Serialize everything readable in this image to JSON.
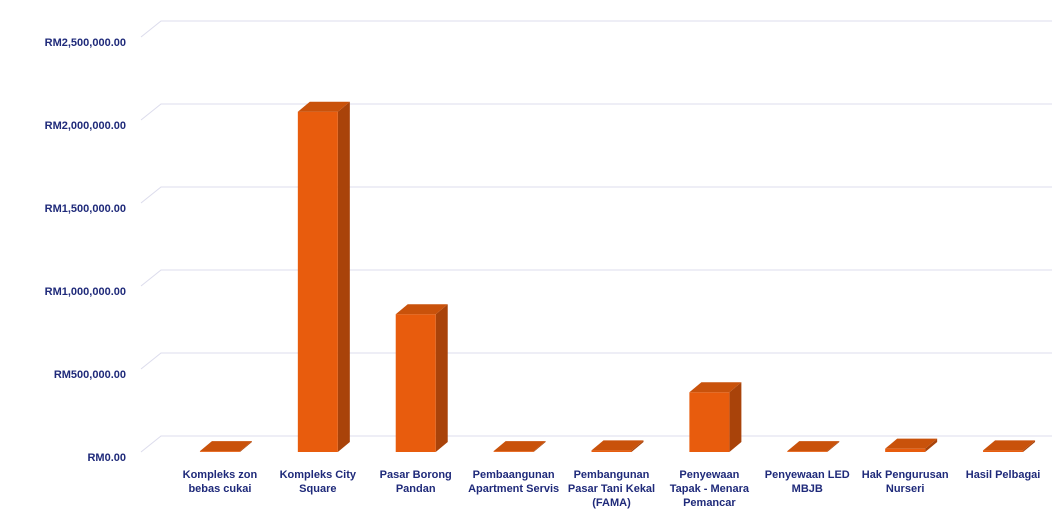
{
  "chart_data": {
    "type": "bar3d",
    "categories": [
      "Kompleks zon bebas cukai",
      "Kompleks City Square",
      "Pasar Borong Pandan",
      "Pembaangunan Apartment Servis",
      "Pembangunan Pasar Tani Kekal (FAMA)",
      "Penyewaan Tapak - Menara Pemancar",
      "Penyewaan LED MBJB",
      "Hak Pengurusan Nurseri",
      "Hasil Pelbagai"
    ],
    "values": [
      5000,
      2050000,
      830000,
      5000,
      10000,
      360000,
      5000,
      20000,
      10000
    ],
    "color": "#e85c0d",
    "ylim": [
      0,
      2500000
    ],
    "yticks": [
      {
        "value": 0,
        "label": "RM0.00"
      },
      {
        "value": 500000,
        "label": "RM500,000.00"
      },
      {
        "value": 1000000,
        "label": "RM1,000,000.00"
      },
      {
        "value": 1500000,
        "label": "RM1,500,000.00"
      },
      {
        "value": 2000000,
        "label": "RM2,000,000.00"
      },
      {
        "value": 2500000,
        "label": "RM2,500,000.00"
      }
    ],
    "grid": true
  }
}
